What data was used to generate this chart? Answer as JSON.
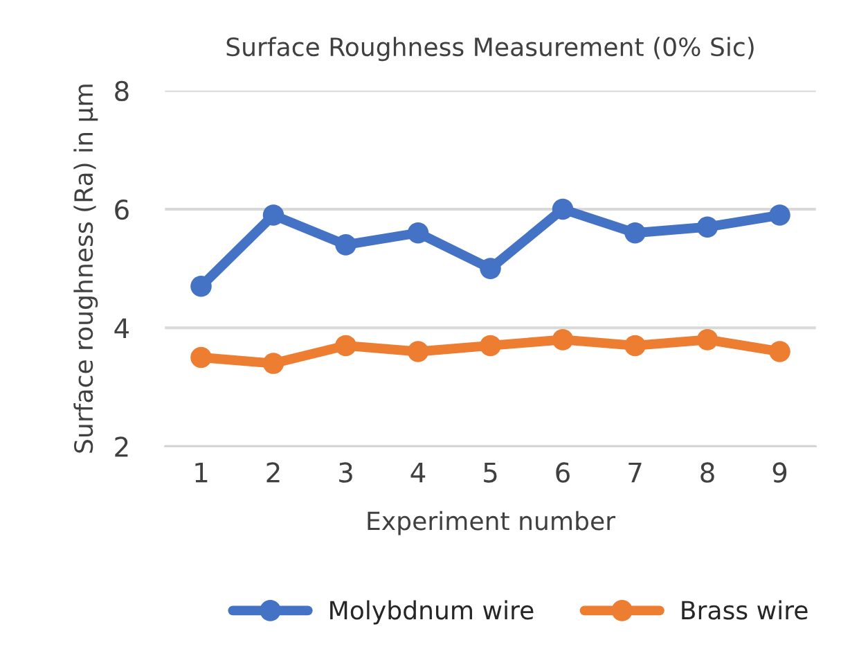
{
  "chart_data": {
    "type": "line",
    "title": "Surface Roughness Measurement (0% Sic)",
    "xlabel": "Experiment number",
    "ylabel": "Surface roughness (Ra) in µm",
    "categories": [
      "1",
      "2",
      "3",
      "4",
      "5",
      "6",
      "7",
      "8",
      "9"
    ],
    "series": [
      {
        "name": "Molybdnum wire",
        "color": "#4472c4",
        "values": [
          4.7,
          5.9,
          5.4,
          5.6,
          5.0,
          6.0,
          5.6,
          5.7,
          5.9
        ]
      },
      {
        "name": "Brass wire",
        "color": "#ed7d31",
        "values": [
          3.5,
          3.4,
          3.7,
          3.6,
          3.7,
          3.8,
          3.7,
          3.8,
          3.6
        ]
      }
    ],
    "ylim": [
      2,
      8
    ],
    "yticks": [
      2,
      4,
      6,
      8
    ],
    "grid": "y",
    "legend": "bottom",
    "marker": "circle",
    "line_style": "solid"
  }
}
